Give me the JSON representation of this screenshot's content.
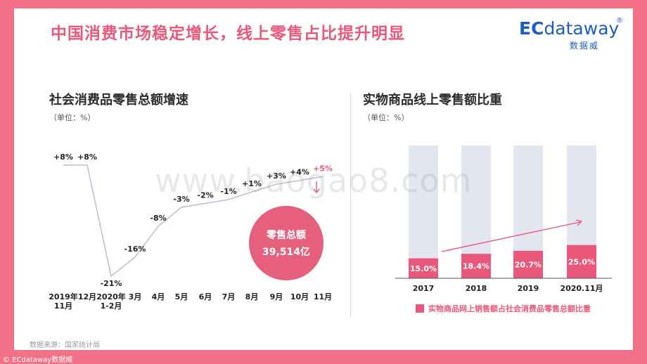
{
  "title": "中国消费市场稳定增长，线上零售占比提升明显",
  "logo": {
    "brand_ec": "EC",
    "brand_rest": "dataway",
    "registered": "®",
    "subtitle": "数据威"
  },
  "left": {
    "title": "社会消费品零售总额增速",
    "unit": "（单位：%）"
  },
  "right": {
    "title": "实物商品线上零售额比重",
    "unit": "（单位：%）"
  },
  "bubble": {
    "label": "零售总额",
    "value": "39,514亿"
  },
  "source": "数据来源：国家统计局",
  "copyright": "© ECdataway数据威",
  "watermark": "www.baogao8.com",
  "colors": {
    "accent": "#e9577b",
    "line": "#b9c3d6",
    "bar_bg": "#e3e6ef",
    "bar_fg": "#e9577b",
    "bubble": "#e6607e",
    "arrow": "#e9577b"
  },
  "chart_data": [
    {
      "type": "line",
      "title": "社会消费品零售总额增速",
      "unit": "%",
      "categories": [
        "2019年11月",
        "12月",
        "2020年1-2月",
        "3月",
        "4月",
        "5月",
        "6月",
        "7月",
        "8月",
        "9月",
        "10月",
        "11月"
      ],
      "tick_lines": [
        [
          "2019年",
          "11月"
        ],
        [
          "12月"
        ],
        [
          "2020年",
          "1-2月"
        ],
        [
          "3月"
        ],
        [
          "4月"
        ],
        [
          "5月"
        ],
        [
          "6月"
        ],
        [
          "7月"
        ],
        [
          "8月"
        ],
        [
          "9月"
        ],
        [
          "10月"
        ],
        [
          "11月"
        ]
      ],
      "values": [
        8,
        8,
        -21,
        -16,
        -8,
        -3,
        -2,
        -1,
        1,
        3,
        4,
        5
      ],
      "labels": [
        "+8%",
        "+8%",
        "-21%",
        "-16%",
        "-8%",
        "-3%",
        "-2%",
        "-1%",
        "+1%",
        "+3%",
        "+4%",
        "+5%"
      ],
      "highlight_index": 11,
      "ylim": [
        -23,
        10
      ]
    },
    {
      "type": "bar",
      "title": "实物商品线上零售额比重",
      "unit": "%",
      "categories": [
        "2017",
        "2018",
        "2019",
        "2020.11月"
      ],
      "values": [
        15.0,
        18.4,
        20.7,
        25.0
      ],
      "labels": [
        "15.0%",
        "18.4%",
        "20.7%",
        "25.0%"
      ],
      "ylim": [
        0,
        100
      ],
      "legend": "实物商品网上销售额占社会消费品零售总额比重",
      "legend_position": "bottom"
    }
  ]
}
